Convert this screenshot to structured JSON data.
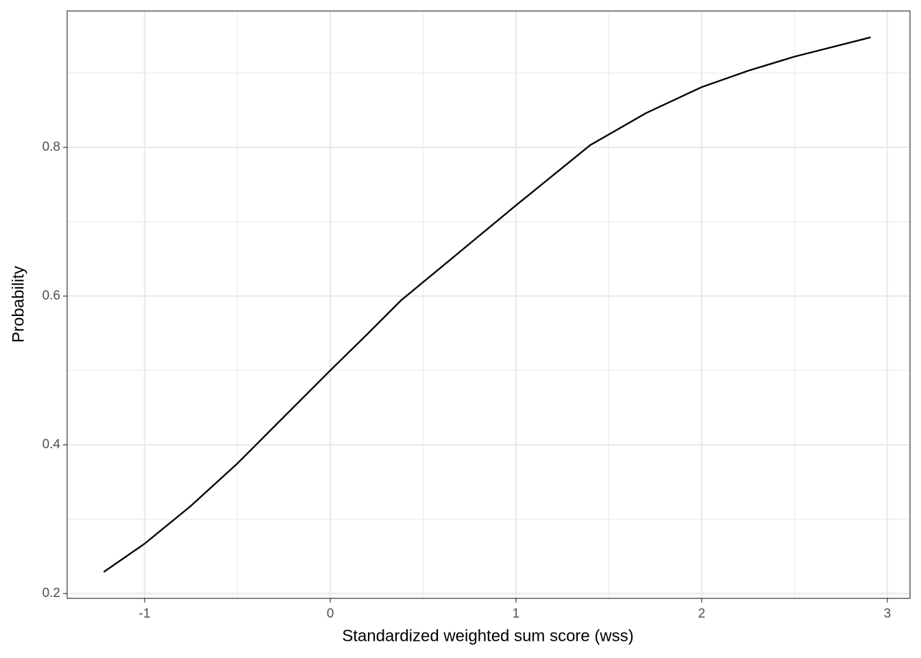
{
  "chart_data": {
    "type": "line",
    "x_label": "Standardized weighted sum score (wss)",
    "y_label": "Probability",
    "x": [
      -1.22,
      -1.0,
      -0.75,
      -0.5,
      0,
      0.2,
      0.38,
      0.7,
      1.0,
      1.4,
      1.7,
      2.0,
      2.25,
      2.5,
      2.91
    ],
    "series": [
      {
        "color": "#000000",
        "values": [
          0.229,
          0.267,
          0.318,
          0.375,
          0.5,
          0.549,
          0.594,
          0.66,
          0.722,
          0.803,
          0.846,
          0.881,
          0.903,
          0.922,
          0.948
        ]
      }
    ],
    "xlim": [
      -1.417,
      3.122
    ],
    "xticks": [
      -1,
      0,
      1,
      2,
      3
    ],
    "ylim": [
      0.1935,
      0.9834
    ],
    "yticks": [
      0.2,
      0.4,
      0.6,
      0.8
    ],
    "x_minor_grid": [
      -0.5,
      0.5,
      1.5,
      2.5
    ],
    "y_minor_grid": [
      0.3,
      0.5,
      0.7,
      0.9
    ],
    "grid": true
  }
}
